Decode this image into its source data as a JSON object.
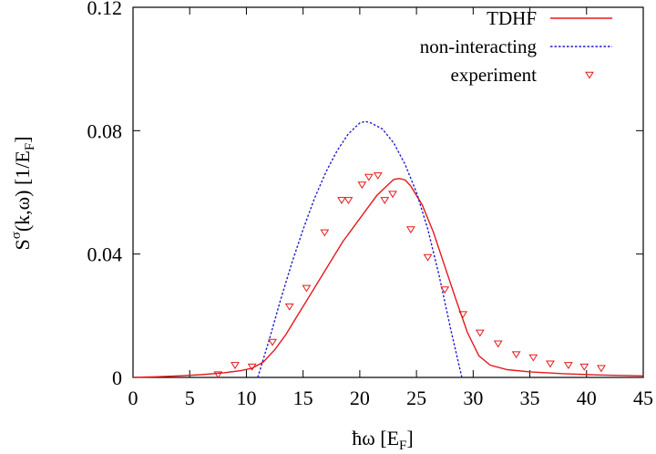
{
  "chart_data": {
    "type": "line",
    "xlabel": "ħω [E_F]",
    "ylabel": "S^σ(k,ω) [1/E_F]",
    "xlim": [
      0,
      45
    ],
    "ylim": [
      0,
      0.12
    ],
    "grid": false,
    "legend_position": "top-right",
    "x_ticks": [
      "0",
      "5",
      "10",
      "15",
      "20",
      "25",
      "30",
      "35",
      "40",
      "45"
    ],
    "y_ticks": [
      "0",
      "0.04",
      "0.08",
      "0.12"
    ],
    "series": [
      {
        "name": "TDHF",
        "style": "solid-line",
        "color": "#e41a1c",
        "points": [
          [
            0,
            0.0
          ],
          [
            2,
            0.0002
          ],
          [
            4,
            0.0005
          ],
          [
            6,
            0.0009
          ],
          [
            8,
            0.0015
          ],
          [
            9.5,
            0.0022
          ],
          [
            10.5,
            0.003
          ],
          [
            11.5,
            0.005
          ],
          [
            12.5,
            0.009
          ],
          [
            13.5,
            0.014
          ],
          [
            14.5,
            0.02
          ],
          [
            15.5,
            0.026
          ],
          [
            16.5,
            0.032
          ],
          [
            17.5,
            0.038
          ],
          [
            18.5,
            0.044
          ],
          [
            19.5,
            0.049
          ],
          [
            20.5,
            0.054
          ],
          [
            21.5,
            0.059
          ],
          [
            22.5,
            0.0625
          ],
          [
            23,
            0.0642
          ],
          [
            23.5,
            0.0645
          ],
          [
            24,
            0.064
          ],
          [
            24.5,
            0.062
          ],
          [
            25.5,
            0.056
          ],
          [
            26.5,
            0.047
          ],
          [
            27.5,
            0.036
          ],
          [
            28.5,
            0.025
          ],
          [
            29.5,
            0.0145
          ],
          [
            30.5,
            0.007
          ],
          [
            31.5,
            0.004
          ],
          [
            33,
            0.0025
          ],
          [
            35,
            0.0018
          ],
          [
            38,
            0.0012
          ],
          [
            41,
            0.0008
          ],
          [
            45,
            0.0005
          ]
        ]
      },
      {
        "name": "non-interacting",
        "style": "dotted-line",
        "color": "#1f1fcc",
        "points": [
          [
            11.0,
            0.0
          ],
          [
            12,
            0.012
          ],
          [
            13,
            0.025
          ],
          [
            14,
            0.037
          ],
          [
            15,
            0.048
          ],
          [
            16,
            0.058
          ],
          [
            17,
            0.0665
          ],
          [
            18,
            0.0735
          ],
          [
            19,
            0.079
          ],
          [
            20,
            0.0825
          ],
          [
            20.5,
            0.083
          ],
          [
            21,
            0.0825
          ],
          [
            22,
            0.0805
          ],
          [
            23,
            0.076
          ],
          [
            24,
            0.069
          ],
          [
            25,
            0.06
          ],
          [
            26,
            0.048
          ],
          [
            27,
            0.033
          ],
          [
            28,
            0.016
          ],
          [
            29,
            0.0
          ]
        ]
      },
      {
        "name": "experiment",
        "style": "triangle-markers",
        "color": "#e41a1c",
        "points": [
          [
            7.5,
            0.001
          ],
          [
            9.0,
            0.004
          ],
          [
            10.5,
            0.0035
          ],
          [
            12.3,
            0.0115
          ],
          [
            13.8,
            0.023
          ],
          [
            15.3,
            0.029
          ],
          [
            16.9,
            0.047
          ],
          [
            18.4,
            0.0575
          ],
          [
            19.0,
            0.0575
          ],
          [
            20.2,
            0.0625
          ],
          [
            20.8,
            0.065
          ],
          [
            21.6,
            0.0655
          ],
          [
            22.2,
            0.0575
          ],
          [
            22.9,
            0.0595
          ],
          [
            24.5,
            0.048
          ],
          [
            26.0,
            0.039
          ],
          [
            27.5,
            0.0285
          ],
          [
            29.1,
            0.0205
          ],
          [
            30.6,
            0.0145
          ],
          [
            32.2,
            0.011
          ],
          [
            33.8,
            0.0075
          ],
          [
            35.3,
            0.0065
          ],
          [
            36.8,
            0.0045
          ],
          [
            38.4,
            0.004
          ],
          [
            39.8,
            0.0035
          ],
          [
            41.3,
            0.003
          ]
        ]
      }
    ]
  }
}
